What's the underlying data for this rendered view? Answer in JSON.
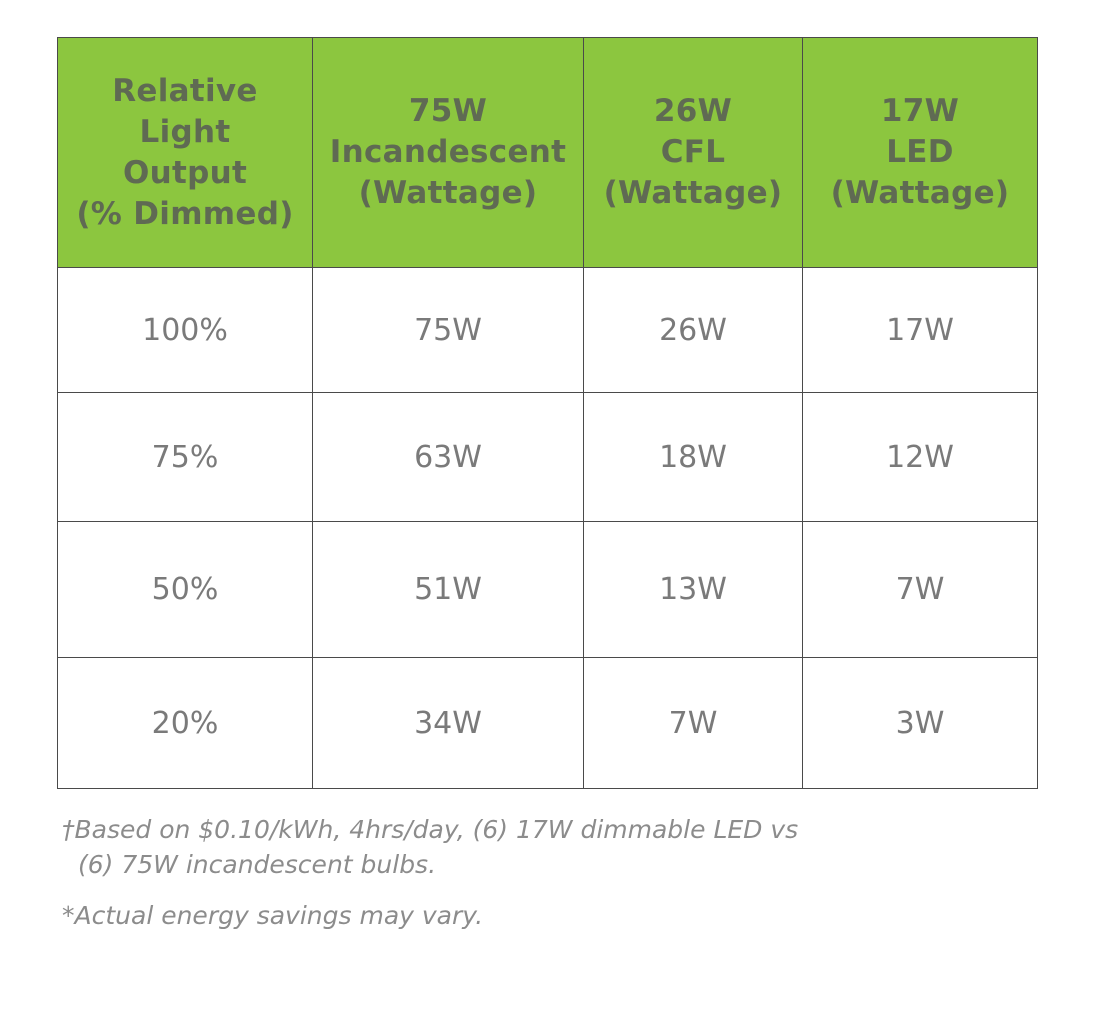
{
  "table": {
    "headers": [
      [
        "Relative",
        "Light",
        "Output",
        "(% Dimmed)"
      ],
      [
        "75W",
        "Incandescent",
        "(Wattage)"
      ],
      [
        "26W",
        "CFL",
        "(Wattage)"
      ],
      [
        "17W",
        "LED",
        "(Wattage)"
      ]
    ],
    "rows": [
      [
        "100%",
        "75W",
        "26W",
        "17W"
      ],
      [
        "75%",
        "63W",
        "18W",
        "12W"
      ],
      [
        "50%",
        "51W",
        "13W",
        "7W"
      ],
      [
        "20%",
        "34W",
        "7W",
        "3W"
      ]
    ],
    "header_color": "#8cc63f"
  },
  "footnotes": {
    "line1": "†Based on $0.10/kWh, 4hrs/day, (6) 17W dimmable LED vs",
    "line2": "(6) 75W incandescent bulbs.",
    "line3": "*Actual energy savings may vary."
  }
}
